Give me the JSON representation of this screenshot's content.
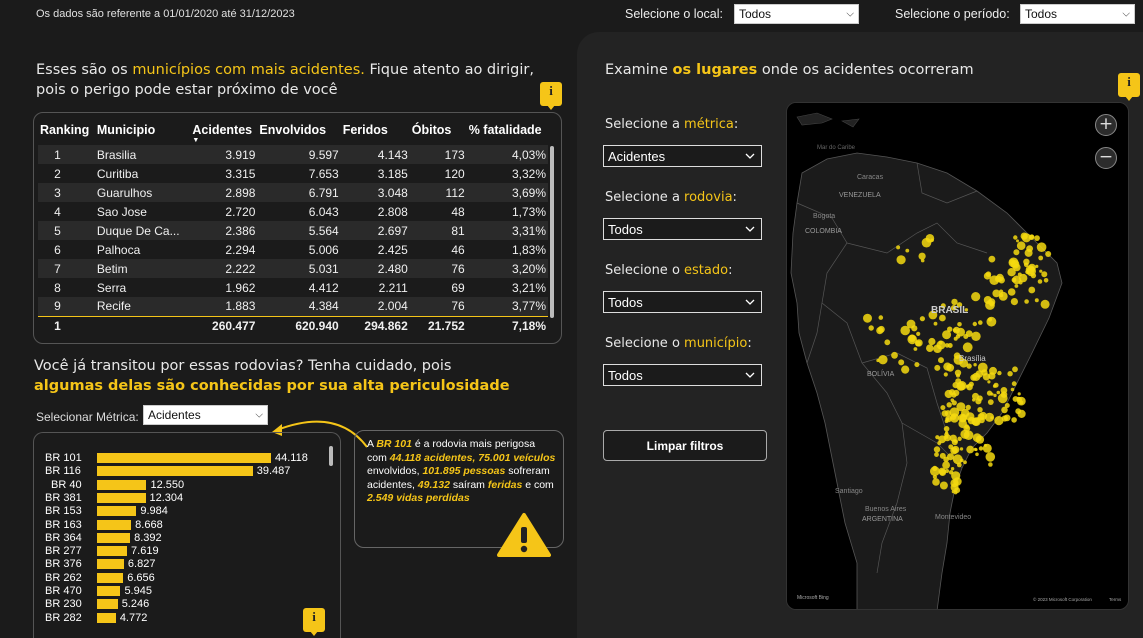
{
  "header": {
    "date_note": "Os dados são referente a 01/01/2020 até 31/12/2023",
    "local_label": "Selecione o local:",
    "local_value": "Todos",
    "periodo_label": "Selecione o período:",
    "periodo_value": "Todos"
  },
  "table_section": {
    "title_pre": "Esses são os ",
    "title_hl": "municípios com mais acidentes.",
    "title_post": " Fique atento ao dirigir, pois o perigo pode estar próximo de você",
    "columns": [
      "Ranking",
      "Municipio",
      "Acidentes",
      "Envolvidos",
      "Feridos",
      "Óbitos",
      "% fatalidade"
    ],
    "rows": [
      [
        "1",
        "Brasilia",
        "3.919",
        "9.597",
        "4.143",
        "173",
        "4,03%"
      ],
      [
        "2",
        "Curitiba",
        "3.315",
        "7.653",
        "3.185",
        "120",
        "3,32%"
      ],
      [
        "3",
        "Guarulhos",
        "2.898",
        "6.791",
        "3.048",
        "112",
        "3,69%"
      ],
      [
        "4",
        "Sao Jose",
        "2.720",
        "6.043",
        "2.808",
        "48",
        "1,73%"
      ],
      [
        "5",
        "Duque De Ca...",
        "2.386",
        "5.564",
        "2.697",
        "81",
        "3,31%"
      ],
      [
        "6",
        "Palhoca",
        "2.294",
        "5.006",
        "2.425",
        "46",
        "1,83%"
      ],
      [
        "7",
        "Betim",
        "2.222",
        "5.031",
        "2.480",
        "76",
        "3,20%"
      ],
      [
        "8",
        "Serra",
        "1.962",
        "4.412",
        "2.211",
        "69",
        "3,21%"
      ],
      [
        "9",
        "Recife",
        "1.883",
        "4.384",
        "2.004",
        "76",
        "3,77%"
      ]
    ],
    "total": [
      "1",
      "",
      "260.477",
      "620.940",
      "294.862",
      "21.752",
      "7,18%"
    ]
  },
  "roads_section": {
    "title_line1": "Você já transitou por essas rodovias? Tenha cuidado, pois",
    "title_line2": "algumas delas são conhecidas por sua alta periculosidade",
    "metric_label": "Selecionar Métrica:",
    "metric_value": "Acidentes"
  },
  "chart_data": {
    "type": "bar",
    "orientation": "horizontal",
    "categories": [
      "BR 101",
      "BR 116",
      "BR 40",
      "BR 381",
      "BR 153",
      "BR 163",
      "BR 364",
      "BR 277",
      "BR 376",
      "BR 262",
      "BR 470",
      "BR 230",
      "BR 282"
    ],
    "values": [
      44118,
      39487,
      12550,
      12304,
      9984,
      8668,
      8392,
      7619,
      6827,
      6656,
      5945,
      5246,
      4772
    ],
    "value_labels": [
      "44.118",
      "39.487",
      "12.550",
      "12.304",
      "9.984",
      "8.668",
      "8.392",
      "7.619",
      "6.827",
      "6.656",
      "5.945",
      "5.246",
      "4.772"
    ],
    "color": "#f5c518"
  },
  "callout": {
    "p1": "A ",
    "p2": "BR 101",
    "p3": " é a rodovia mais perigosa com ",
    "p4": "44.118 acidentes, 75.001 veículos",
    "p5": " envolvidos, ",
    "p6": "101.895 pessoas",
    "p7": " sofreram acidentes, ",
    "p8": "49.132",
    "p9": " saíram ",
    "p10": "feridas",
    "p11": " e com ",
    "p12": "2.549 vidas perdidas"
  },
  "map_section": {
    "title_pre": "Examine ",
    "title_hl": "os lugares",
    "title_post": " onde os acidentes ocorreram",
    "filters": [
      {
        "pre": "Selecione a ",
        "hl": "métrica",
        "post": ":",
        "value": "Acidentes"
      },
      {
        "pre": "Selecione a ",
        "hl": "rodovia",
        "post": ":",
        "value": "Todos"
      },
      {
        "pre": "Selecione o ",
        "hl": "estado",
        "post": ":",
        "value": "Todos"
      },
      {
        "pre": "Selecione o ",
        "hl": "município",
        "post": ":",
        "value": "Todos"
      }
    ],
    "clear_button": "Limpar filtros",
    "map_labels": {
      "mar": "Mar do Caribe",
      "caracas": "Caracas",
      "venezuela": "VENEZUELA",
      "bogota": "Bogota",
      "colombia": "COLOMBIA",
      "brasil": "BRASIL",
      "bolivia": "BOLÍVIA",
      "brasilia": "Brasília",
      "santiago": "Santiago",
      "buenos_aires": "Buenos Aires",
      "argentina": "ARGENTINA",
      "montevideo": "Montevideo",
      "bing": "Microsoft Bing",
      "copyright": "© 2023 Microsoft Corporation",
      "terms": "Terms"
    },
    "zoom_in": "+",
    "zoom_out": "−"
  },
  "icons": {
    "info": "i",
    "warning": "!"
  }
}
